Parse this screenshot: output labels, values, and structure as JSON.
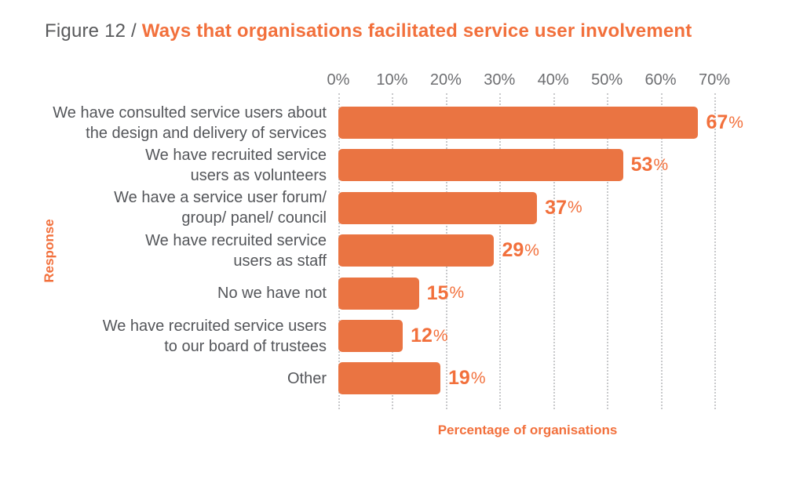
{
  "title": {
    "prefix": "Figure 12 / ",
    "main": "Ways that organisations facilitated service user involvement"
  },
  "colors": {
    "background": "#FFFFFF",
    "bar": "#EA7442",
    "accent_text": "#F2703C",
    "title_gray": "#58595B",
    "category_gray": "#54565A",
    "tick_gray": "#6D6E71",
    "gridline_gray": "#C8C9CB"
  },
  "chart_data": {
    "type": "bar",
    "orientation": "horizontal",
    "title": "Ways that organisations facilitated service user involvement",
    "categories": [
      "We have consulted service users about the design and delivery of services",
      "We have recruited service users as volunteers",
      "We have a service user forum/ group/ panel/ council",
      "We have recruited service users as staff",
      "No we have not",
      "We have recruited service users to our board of trustees",
      "Other"
    ],
    "category_lines": [
      [
        "We have consulted service users about",
        "the design and delivery of services"
      ],
      [
        "We have recruited service",
        "users as volunteers"
      ],
      [
        "We have a service user forum/",
        "group/ panel/ council"
      ],
      [
        "We have recruited service",
        "users as staff"
      ],
      [
        "No we have not"
      ],
      [
        "We have recruited service users",
        "to our board of trustees"
      ],
      [
        "Other"
      ]
    ],
    "values": [
      67,
      53,
      37,
      29,
      15,
      12,
      19
    ],
    "value_suffix": "%",
    "xlabel": "Percentage of organisations",
    "ylabel": "Response",
    "xlim": [
      0,
      70
    ],
    "xticks": [
      "0%",
      "10%",
      "20%",
      "30%",
      "40%",
      "50%",
      "60%",
      "70%"
    ],
    "grid": "vertical-dotted",
    "legend": "none"
  }
}
